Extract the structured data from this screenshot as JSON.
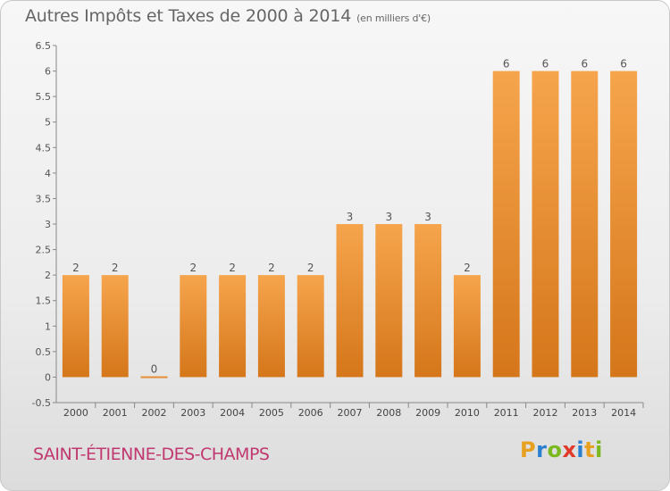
{
  "title": "Autres Impôts et Taxes de 2000 à 2014",
  "title_unit": "(en milliers d'€)",
  "commune": "SAINT-ÉTIENNE-DES-CHAMPS",
  "logo": {
    "letters": [
      "P",
      "r",
      "o",
      "x",
      "i",
      "t",
      "i"
    ],
    "colors": [
      "#e8a020",
      "#2a7fd0",
      "#7cb820",
      "#e03a2a",
      "#2a7fd0",
      "#e8a020",
      "#7cb820"
    ]
  },
  "colors": {
    "bar_top": "#f6a54d",
    "bar_bottom": "#d5761a",
    "title": "#666666",
    "commune": "#c0386f"
  },
  "chart_data": {
    "type": "bar",
    "categories": [
      "2000",
      "2001",
      "2002",
      "2003",
      "2004",
      "2005",
      "2006",
      "2007",
      "2008",
      "2009",
      "2010",
      "2011",
      "2012",
      "2013",
      "2014"
    ],
    "values": [
      2,
      2,
      0,
      2,
      2,
      2,
      2,
      3,
      3,
      3,
      2,
      6,
      6,
      6,
      6
    ],
    "data_labels": [
      "2",
      "2",
      "0",
      "2",
      "2",
      "2",
      "2",
      "3",
      "3",
      "3",
      "2",
      "6",
      "6",
      "6",
      "6"
    ],
    "yticks": [
      "-0.5",
      "0",
      "0.5",
      "1",
      "1.5",
      "2",
      "2.5",
      "3",
      "3.5",
      "4",
      "4.5",
      "5",
      "5.5",
      "6",
      "6.5"
    ],
    "ylim": [
      -0.5,
      6.5
    ],
    "grid": false,
    "legend": "none"
  }
}
